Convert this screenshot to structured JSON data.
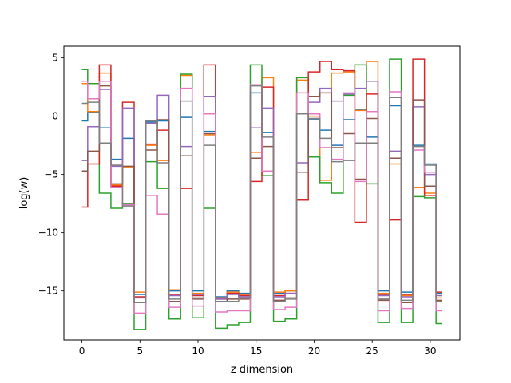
{
  "chart_data": {
    "type": "line",
    "drawstyle": "steps-mid",
    "xlabel": "z dimension",
    "ylabel": "log(w)",
    "xlim": [
      -1.55,
      32.55
    ],
    "ylim": [
      -19.2,
      6.0
    ],
    "xticks": [
      0,
      5,
      10,
      15,
      20,
      25,
      30
    ],
    "yticks": [
      5,
      0,
      -5,
      -10,
      -15
    ],
    "grid": false,
    "legend": false,
    "x": [
      0,
      1,
      2,
      3,
      4,
      5,
      6,
      7,
      8,
      9,
      10,
      11,
      12,
      13,
      14,
      15,
      16,
      17,
      18,
      19,
      20,
      21,
      22,
      23,
      24,
      25,
      26,
      27,
      28,
      29,
      30,
      31
    ],
    "series": [
      {
        "color": "#1f77b4",
        "values": [
          -0.4,
          0.3,
          -1.0,
          -3.7,
          -1.9,
          -15.3,
          -0.5,
          -0.4,
          -15.0,
          -0.1,
          -15.0,
          -1.3,
          -15.5,
          -15.0,
          -15.2,
          2.0,
          -1.4,
          -15.2,
          -15.0,
          0.2,
          -0.3,
          -1.2,
          -2.5,
          -0.3,
          0.6,
          -1.8,
          -15.0,
          0.9,
          -15.1,
          -2.5,
          -4.1,
          -15.2
        ]
      },
      {
        "color": "#ff7f0e",
        "values": [
          2.8,
          0.4,
          3.7,
          -5.9,
          -4.4,
          -15.1,
          -2.5,
          -3.8,
          -14.9,
          3.5,
          -15.2,
          -1.6,
          -15.6,
          -15.1,
          -15.3,
          -3.1,
          3.3,
          -15.1,
          -15.0,
          3.1,
          0.0,
          -5.5,
          3.7,
          3.8,
          0.5,
          4.7,
          -15.2,
          -4.1,
          -15.4,
          -6.1,
          -6.6,
          -15.6
        ]
      },
      {
        "color": "#2ca02c",
        "values": [
          4.0,
          2.8,
          -6.6,
          -7.9,
          -7.5,
          -18.3,
          -3.9,
          -6.2,
          -17.4,
          3.6,
          -17.3,
          -7.9,
          -18.2,
          -17.9,
          -17.7,
          4.4,
          -5.1,
          -17.6,
          -17.4,
          3.3,
          -3.5,
          -5.7,
          -6.6,
          1.8,
          4.4,
          -5.8,
          -17.7,
          4.9,
          -17.7,
          -6.9,
          -7.0,
          -17.8
        ]
      },
      {
        "color": "#d62728",
        "values": [
          -7.8,
          -4.1,
          4.4,
          -6.0,
          1.2,
          -15.5,
          -2.4,
          -1.2,
          -15.3,
          -6.2,
          -15.4,
          4.4,
          -15.7,
          -15.2,
          -15.4,
          -5.6,
          2.5,
          -15.4,
          -15.2,
          -7.2,
          3.8,
          4.7,
          4.0,
          3.9,
          -9.1,
          1.9,
          -15.3,
          -8.9,
          -15.3,
          4.9,
          -6.8,
          -15.1
        ]
      },
      {
        "color": "#9467bd",
        "values": [
          -3.8,
          -0.9,
          2.3,
          -4.3,
          0.7,
          -15.6,
          -0.6,
          1.8,
          -15.4,
          -2.6,
          -15.3,
          1.7,
          -15.7,
          -15.3,
          -15.5,
          -1.0,
          0.7,
          -15.5,
          -15.2,
          -4.0,
          1.2,
          2.4,
          1.3,
          1.9,
          2.4,
          3.0,
          -15.4,
          -3.0,
          -15.5,
          0.8,
          -5.0,
          -15.4
        ]
      },
      {
        "color": "#8c564b",
        "values": [
          -4.7,
          -3.0,
          2.6,
          -5.8,
          -4.3,
          -16.0,
          -2.9,
          -0.3,
          -15.9,
          -3.4,
          -15.7,
          -1.5,
          -15.9,
          -15.7,
          -15.7,
          -3.6,
          -2.6,
          -15.8,
          -15.6,
          -4.8,
          1.7,
          2.0,
          -2.7,
          -1.5,
          -5.4,
          -0.2,
          -15.8,
          -3.6,
          -16.0,
          1.4,
          -6.0,
          -15.8
        ]
      },
      {
        "color": "#e377c2",
        "values": [
          3.0,
          1.5,
          3.0,
          -6.1,
          -7.6,
          -16.9,
          -6.8,
          -8.4,
          -16.4,
          2.4,
          -16.3,
          0.2,
          -16.8,
          -16.7,
          -16.7,
          2.7,
          -4.7,
          -16.6,
          -16.4,
          2.0,
          0.2,
          -2.7,
          -3.7,
          2.0,
          -5.6,
          0.4,
          -16.7,
          2.1,
          -16.5,
          -2.9,
          -4.8,
          -16.7
        ]
      },
      {
        "color": "#7f7f7f",
        "values": [
          1.1,
          1.2,
          -2.3,
          -4.2,
          -7.7,
          -16.0,
          -0.4,
          -4.0,
          -15.7,
          1.3,
          -15.6,
          -2.5,
          -15.9,
          -15.9,
          -15.6,
          2.6,
          -1.8,
          -15.9,
          -15.7,
          0.2,
          -0.2,
          -1.9,
          -3.9,
          -3.8,
          -2.3,
          -2.3,
          -15.7,
          1.6,
          -15.8,
          -2.6,
          -4.2,
          -15.9
        ]
      }
    ]
  }
}
